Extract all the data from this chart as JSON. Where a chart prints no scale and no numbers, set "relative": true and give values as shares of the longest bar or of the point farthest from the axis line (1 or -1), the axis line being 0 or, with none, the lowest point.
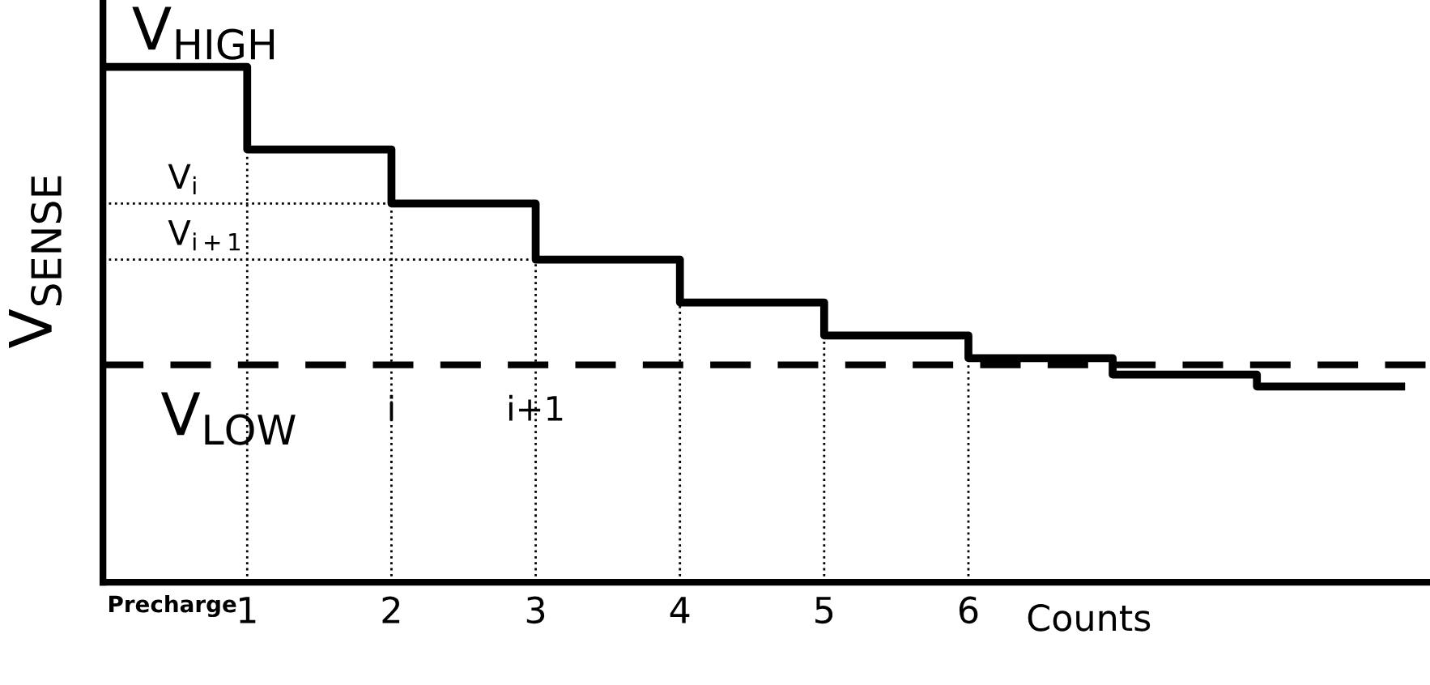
{
  "chart_data": {
    "type": "step",
    "relative": true,
    "ylabel": "V$_{SENSE}$",
    "xlabel": "Counts",
    "x": [
      0,
      1,
      2,
      3,
      4,
      5,
      6,
      7,
      8,
      9
    ],
    "series": [
      {
        "color": "#000000",
        "values": [
          1,
          0.84,
          0.735,
          0.626,
          0.543,
          0.479,
          0.435,
          0.403,
          0.38,
          0.38
        ]
      }
    ],
    "xlim": [
      0,
      9.2
    ],
    "xticks": [
      1,
      2,
      3,
      4,
      5,
      6
    ],
    "tick_labels": "x",
    "grid": false,
    "line_style": "solid",
    "marker": "none",
    "ref_lines": [
      {
        "axis": "y",
        "value": 0.422,
        "label": "V$_{LOW}$",
        "line_style": "dashed",
        "color": "#000000"
      },
      {
        "axis": "y",
        "value": 0.735,
        "label": "V$_{i}$",
        "line_style": "dotted",
        "color": "#000000"
      },
      {
        "axis": "y",
        "value": 0.626,
        "label": "V$_{i+1}$",
        "line_style": "dotted",
        "color": "#000000"
      },
      {
        "axis": "x",
        "value": 1,
        "line_style": "dotted",
        "color": "#000000"
      },
      {
        "axis": "x",
        "value": 2,
        "line_style": "dotted",
        "color": "#000000"
      },
      {
        "axis": "x",
        "value": 3,
        "line_style": "dotted",
        "color": "#000000"
      },
      {
        "axis": "x",
        "value": 4,
        "line_style": "dotted",
        "color": "#000000"
      },
      {
        "axis": "x",
        "value": 5,
        "line_style": "dotted",
        "color": "#000000"
      },
      {
        "axis": "x",
        "value": 6,
        "line_style": "dotted",
        "color": "#000000"
      }
    ],
    "annotations": [
      {
        "text": "V$_{HIGH}$",
        "x": 0.2,
        "y": 1
      },
      {
        "text": "i",
        "x": 2,
        "y": 0.3
      },
      {
        "text": "i+1",
        "x": 3,
        "y": 0.3
      },
      "Precharge"
    ]
  }
}
